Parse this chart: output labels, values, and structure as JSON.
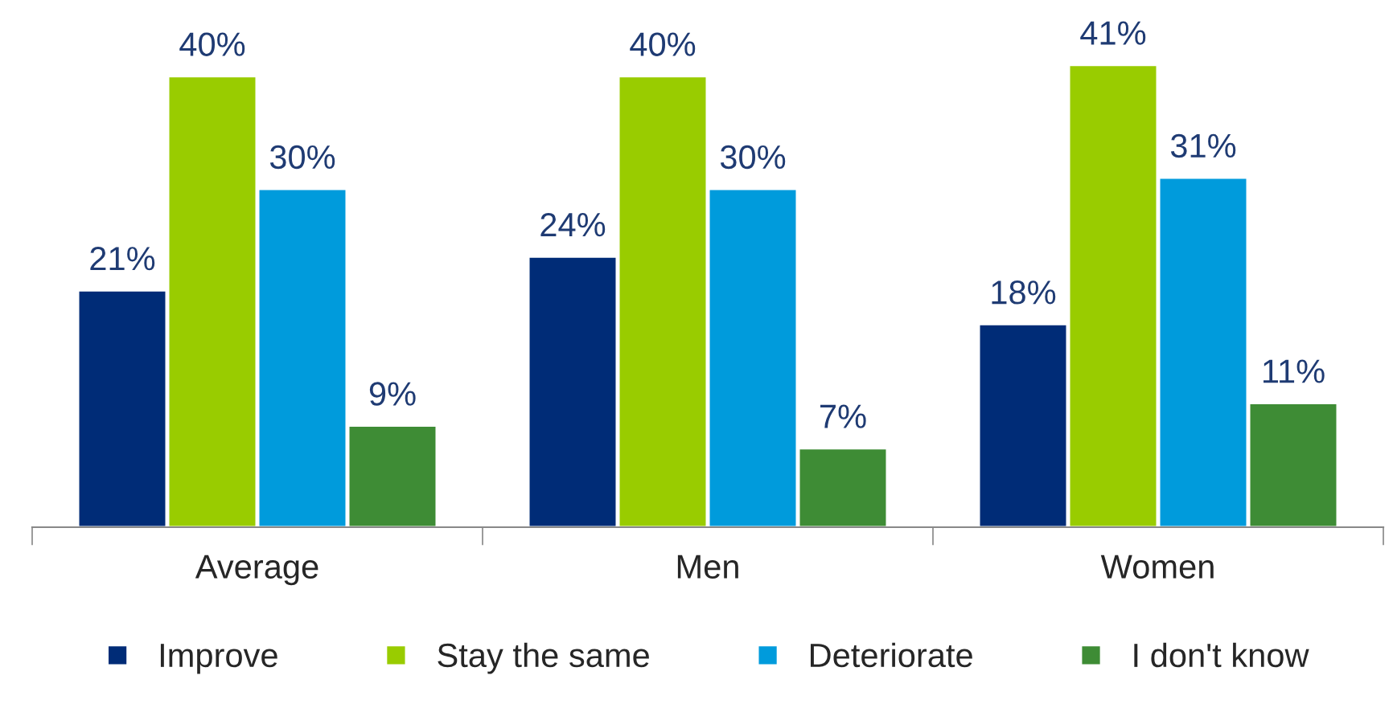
{
  "chart_data": {
    "type": "bar",
    "categories": [
      "Average",
      "Men",
      "Women"
    ],
    "series": [
      {
        "name": "Improve",
        "color": "#002c77",
        "values": [
          21,
          24,
          18
        ],
        "value_labels": [
          "21%",
          "24%",
          "18%"
        ]
      },
      {
        "name": "Stay the same",
        "color": "#99cc00",
        "values": [
          40,
          40,
          41
        ],
        "value_labels": [
          "40%",
          "40%",
          "41%"
        ]
      },
      {
        "name": "Deteriorate",
        "color": "#009bdc",
        "values": [
          30,
          30,
          31
        ],
        "value_labels": [
          "30%",
          "30%",
          "31%"
        ]
      },
      {
        "name": "I don't know",
        "color": "#3e8c35",
        "values": [
          9,
          7,
          11
        ],
        "value_labels": [
          "9%",
          "7%",
          "11%"
        ]
      }
    ],
    "legend": "bottom"
  }
}
